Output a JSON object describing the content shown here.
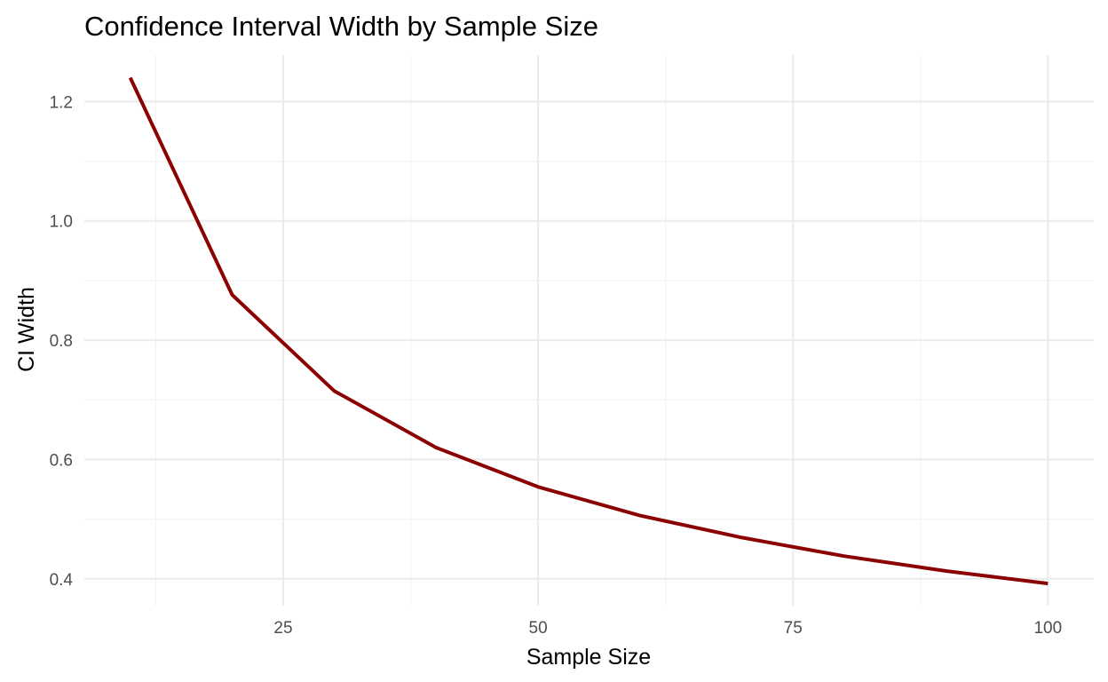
{
  "colors": {
    "line": "#8b0000",
    "grid_major": "#ebebeb",
    "grid_minor": "#f4f4f4",
    "tick_text": "#4d4d4d",
    "background": "#ffffff"
  },
  "chart_data": {
    "type": "line",
    "title": "Confidence Interval Width by Sample Size",
    "xlabel": "Sample Size",
    "ylabel": "CI Width",
    "x": [
      10,
      20,
      30,
      40,
      50,
      60,
      70,
      80,
      90,
      100
    ],
    "series": [
      {
        "values": [
          1.24,
          0.876,
          0.715,
          0.62,
          0.554,
          0.506,
          0.469,
          0.438,
          0.413,
          0.392
        ]
      }
    ],
    "xlim": [
      5.5,
      104.5
    ],
    "ylim": [
      0.355,
      1.278
    ],
    "xticks": [
      25,
      50,
      75,
      100
    ],
    "xtick_labels": [
      "25",
      "50",
      "75",
      "100"
    ],
    "yticks": [
      0.4,
      0.6,
      0.8,
      1.0,
      1.2
    ],
    "ytick_labels": [
      "0.4",
      "0.6",
      "0.8",
      "1.0",
      "1.2"
    ],
    "x_minor_ticks": [
      12.5,
      37.5,
      62.5,
      87.5
    ],
    "y_minor_ticks": [
      0.5,
      0.7,
      0.9,
      1.1
    ],
    "grid": true,
    "legend": "none"
  }
}
